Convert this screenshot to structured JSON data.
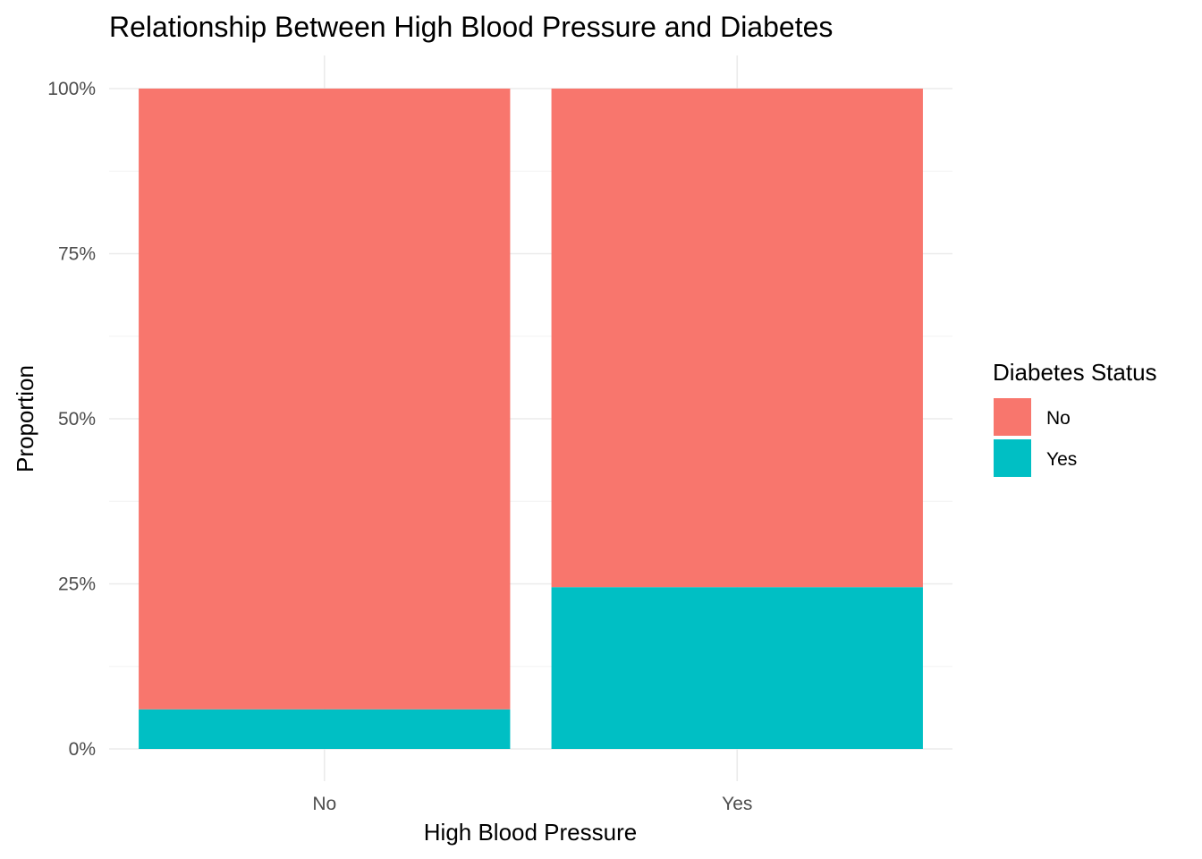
{
  "chart_data": {
    "type": "bar",
    "stacked": true,
    "normalized": true,
    "title": "Relationship Between High Blood Pressure and Diabetes",
    "xlabel": "High Blood Pressure",
    "ylabel": "Proportion",
    "categories": [
      "No",
      "Yes"
    ],
    "y_ticks": [
      {
        "value": 0,
        "label": "0%"
      },
      {
        "value": 0.25,
        "label": "25%"
      },
      {
        "value": 0.5,
        "label": "50%"
      },
      {
        "value": 0.75,
        "label": "75%"
      },
      {
        "value": 1,
        "label": "100%"
      }
    ],
    "ylim": [
      0,
      1
    ],
    "grid": true,
    "legend": {
      "title": "Diabetes Status",
      "placement": "right"
    },
    "series": [
      {
        "name": "Yes",
        "color": "#00BFC4",
        "values": [
          0.06,
          0.245
        ]
      },
      {
        "name": "No",
        "color": "#F8766D",
        "values": [
          0.94,
          0.755
        ]
      }
    ],
    "legend_order": [
      "No",
      "Yes"
    ]
  }
}
